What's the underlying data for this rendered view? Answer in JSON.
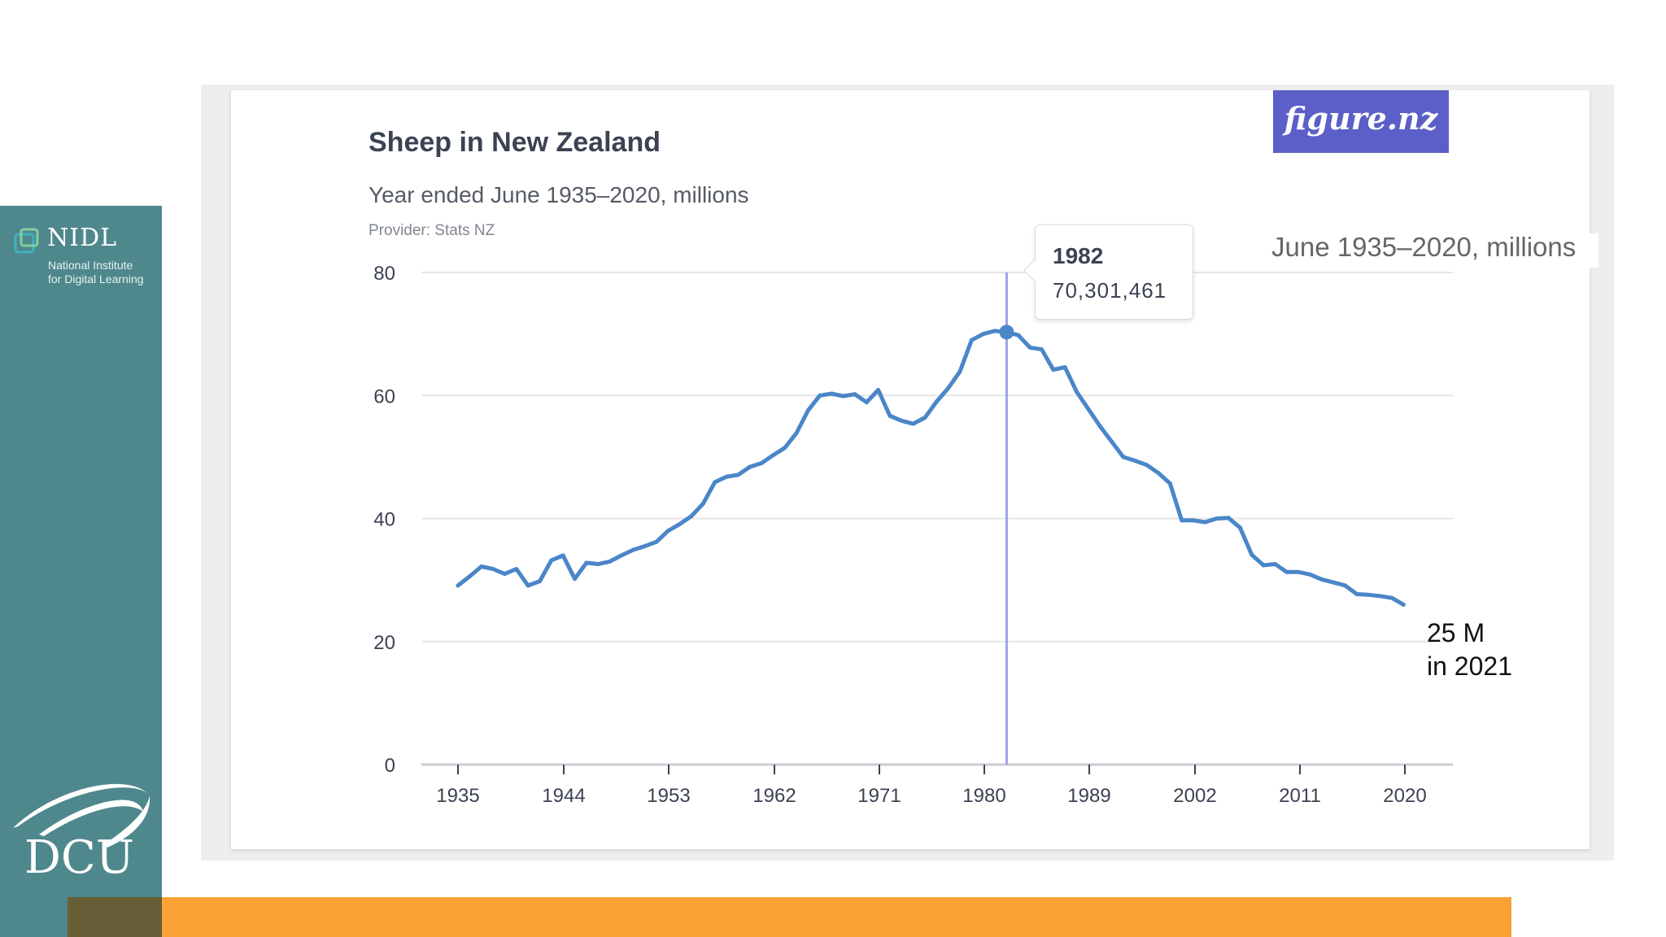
{
  "branding": {
    "nidl_title": "NIDL",
    "nidl_subtitle_line1": "National Institute",
    "nidl_subtitle_line2": "for Digital Learning",
    "dcu_text": "DCU",
    "figurenz_text": "figure.nz"
  },
  "colors": {
    "sidebar": "#4f888c",
    "bottom_bar": "#f8a235",
    "bottom_bar_dark": "#675e38",
    "line": "#4a86c8",
    "crosshair": "#9fa3e6",
    "figurenz_bg": "#5b5fc7"
  },
  "overlay_caption": "June 1935–2020, millions",
  "tooltip": {
    "year": "1982",
    "value": "70,301,461"
  },
  "annotation": {
    "line1": "25 M",
    "line2": "in 2021"
  },
  "chart_data": {
    "type": "line",
    "title": "Sheep in New Zealand",
    "subtitle": "Year ended June 1935–2020, millions",
    "provider": "Provider: Stats NZ",
    "xlabel": "",
    "ylabel": "",
    "ylim": [
      0,
      80
    ],
    "yticks": [
      0,
      20,
      40,
      60,
      80
    ],
    "xticks": [
      "1935",
      "1944",
      "1953",
      "1962",
      "1971",
      "1980",
      "1989",
      "2002",
      "2011",
      "2020"
    ],
    "grid": true,
    "highlight_index": 47,
    "series": [
      {
        "values": [
          29.1,
          30.6,
          32.2,
          31.8,
          31.0,
          31.8,
          29.1,
          29.8,
          33.2,
          34.0,
          30.2,
          32.8,
          32.6,
          33.0,
          34.0,
          34.9,
          35.5,
          36.2,
          38.0,
          39.1,
          40.4,
          42.4,
          45.9,
          46.8,
          47.1,
          48.4,
          49.0,
          50.3,
          51.5,
          53.9,
          57.6,
          60.0,
          60.3,
          59.9,
          60.2,
          58.9,
          60.9,
          56.7,
          55.9,
          55.4,
          56.4,
          59.0,
          61.2,
          63.9,
          69.0,
          70.0,
          70.5,
          70.3,
          69.8,
          67.8,
          67.5,
          64.2,
          64.6,
          60.6,
          57.8,
          55.0,
          52.5,
          50.0,
          49.4,
          48.7,
          47.4,
          45.7,
          39.7,
          39.7,
          39.4,
          40.0,
          40.1,
          38.5,
          34.1,
          32.4,
          32.6,
          31.3,
          31.3,
          30.9,
          30.1,
          29.6,
          29.1,
          27.7,
          27.6,
          27.4,
          27.1,
          26.0
        ]
      }
    ]
  }
}
